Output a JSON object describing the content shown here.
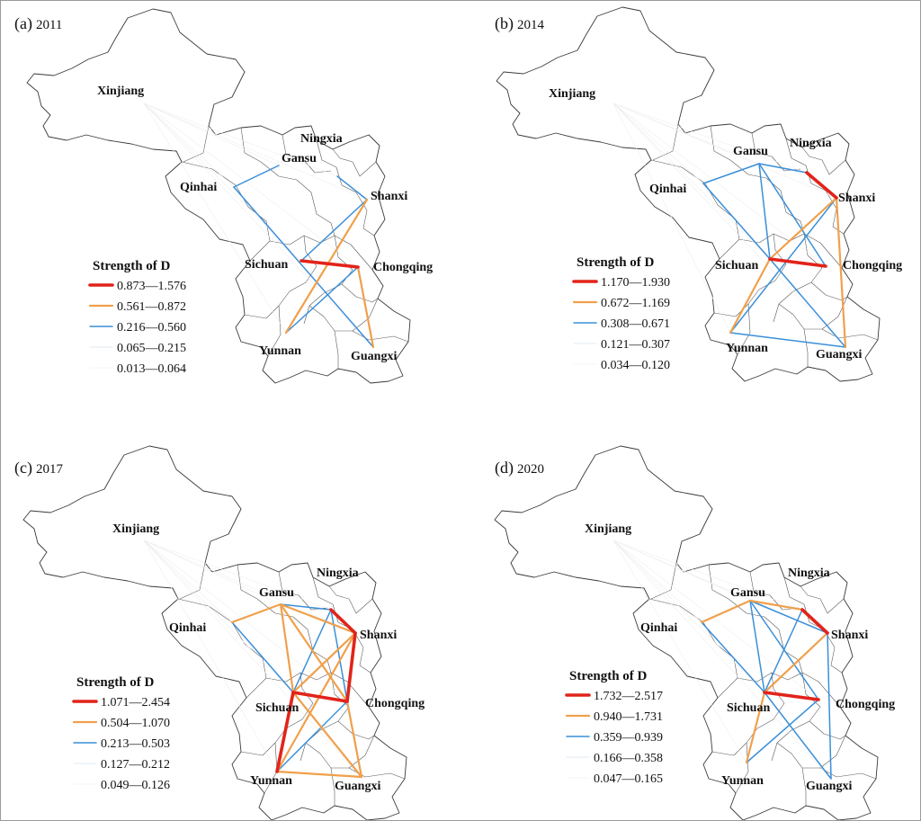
{
  "colors": {
    "level1": "#e2231a",
    "level2": "#f0a04b",
    "level3": "#3a8fd9",
    "level4": "#d6e3ee",
    "level5": "#eeeeee"
  },
  "panels": [
    {
      "tag": "(a)",
      "year": "2011",
      "legend": {
        "title": "Strength of D",
        "ranges": [
          "0.873—1.576",
          "0.561—0.872",
          "0.216—0.560",
          "0.065—0.215",
          "0.013—0.064"
        ]
      },
      "links": [
        {
          "from": "Sichuan",
          "to": "Chongqing",
          "level": 1
        },
        {
          "from": "Shanxi",
          "to": "Yunnan",
          "level": 2
        },
        {
          "from": "Chongqing",
          "to": "Guangxi",
          "level": 2
        },
        {
          "from": "Qinhai",
          "to": "Guangxi",
          "level": 3
        },
        {
          "from": "Gansu",
          "to": "Qinhai",
          "level": 3
        },
        {
          "from": "Sichuan",
          "to": "Shanxi",
          "level": 3
        },
        {
          "from": "Yunnan",
          "to": "Chongqing",
          "level": 3
        },
        {
          "from": "Ningxia",
          "to": "Shanxi",
          "level": 3
        }
      ]
    },
    {
      "tag": "(b)",
      "year": "2014",
      "legend": {
        "title": "Strength of D",
        "ranges": [
          "1.170—1.930",
          "0.672—1.169",
          "0.308—0.671",
          "0.121—0.307",
          "0.034—0.120"
        ]
      },
      "links": [
        {
          "from": "Sichuan",
          "to": "Chongqing",
          "level": 1
        },
        {
          "from": "Ningxia",
          "to": "Shanxi",
          "level": 1
        },
        {
          "from": "Sichuan",
          "to": "Shanxi",
          "level": 2
        },
        {
          "from": "Sichuan",
          "to": "Yunnan",
          "level": 2
        },
        {
          "from": "Shanxi",
          "to": "Guangxi",
          "level": 2
        },
        {
          "from": "Gansu",
          "to": "Qinhai",
          "level": 3
        },
        {
          "from": "Gansu",
          "to": "Sichuan",
          "level": 3
        },
        {
          "from": "Gansu",
          "to": "Ningxia",
          "level": 3
        },
        {
          "from": "Gansu",
          "to": "Chongqing",
          "level": 3
        },
        {
          "from": "Qinhai",
          "to": "Sichuan",
          "level": 3
        },
        {
          "from": "Shanxi",
          "to": "Yunnan",
          "level": 3
        },
        {
          "from": "Sichuan",
          "to": "Guangxi",
          "level": 3
        },
        {
          "from": "Yunnan",
          "to": "Guangxi",
          "level": 3
        }
      ]
    },
    {
      "tag": "(c)",
      "year": "2017",
      "legend": {
        "title": "Strength of D",
        "ranges": [
          "1.071—2.454",
          "0.504—1.070",
          "0.213—0.503",
          "0.127—0.212",
          "0.049—0.126"
        ]
      },
      "links": [
        {
          "from": "Sichuan",
          "to": "Chongqing",
          "level": 1
        },
        {
          "from": "Ningxia",
          "to": "Shanxi",
          "level": 1
        },
        {
          "from": "Sichuan",
          "to": "Yunnan",
          "level": 1
        },
        {
          "from": "Shanxi",
          "to": "Chongqing",
          "level": 1
        },
        {
          "from": "Gansu",
          "to": "Qinhai",
          "level": 2
        },
        {
          "from": "Gansu",
          "to": "Sichuan",
          "level": 2
        },
        {
          "from": "Gansu",
          "to": "Shanxi",
          "level": 2
        },
        {
          "from": "Gansu",
          "to": "Chongqing",
          "level": 2
        },
        {
          "from": "Sichuan",
          "to": "Shanxi",
          "level": 2
        },
        {
          "from": "Yunnan",
          "to": "Guangxi",
          "level": 2
        },
        {
          "from": "Chongqing",
          "to": "Guangxi",
          "level": 2
        },
        {
          "from": "Yunnan",
          "to": "Shanxi",
          "level": 2
        },
        {
          "from": "Sichuan",
          "to": "Guangxi",
          "level": 2
        },
        {
          "from": "Qinhai",
          "to": "Sichuan",
          "level": 3
        },
        {
          "from": "Gansu",
          "to": "Ningxia",
          "level": 3
        },
        {
          "from": "Sichuan",
          "to": "Ningxia",
          "level": 3
        },
        {
          "from": "Yunnan",
          "to": "Chongqing",
          "level": 3
        },
        {
          "from": "Ningxia",
          "to": "Chongqing",
          "level": 3
        }
      ]
    },
    {
      "tag": "(d)",
      "year": "2020",
      "legend": {
        "title": "Strength of D",
        "ranges": [
          "1.732—2.517",
          "0.940—1.731",
          "0.359—0.939",
          "0.166—0.358",
          "0.047—0.165"
        ]
      },
      "links": [
        {
          "from": "Sichuan",
          "to": "Chongqing",
          "level": 1
        },
        {
          "from": "Ningxia",
          "to": "Shanxi",
          "level": 1
        },
        {
          "from": "Gansu",
          "to": "Qinhai",
          "level": 2
        },
        {
          "from": "Gansu",
          "to": "Ningxia",
          "level": 2
        },
        {
          "from": "Sichuan",
          "to": "Shanxi",
          "level": 2
        },
        {
          "from": "Sichuan",
          "to": "Yunnan",
          "level": 2
        },
        {
          "from": "Gansu",
          "to": "Sichuan",
          "level": 3
        },
        {
          "from": "Gansu",
          "to": "Chongqing",
          "level": 3
        },
        {
          "from": "Gansu",
          "to": "Shanxi",
          "level": 3
        },
        {
          "from": "Qinhai",
          "to": "Sichuan",
          "level": 3
        },
        {
          "from": "Sichuan",
          "to": "Ningxia",
          "level": 3
        },
        {
          "from": "Sichuan",
          "to": "Guangxi",
          "level": 3
        },
        {
          "from": "Yunnan",
          "to": "Chongqing",
          "level": 3
        },
        {
          "from": "Shanxi",
          "to": "Guangxi",
          "level": 3
        }
      ]
    }
  ]
}
